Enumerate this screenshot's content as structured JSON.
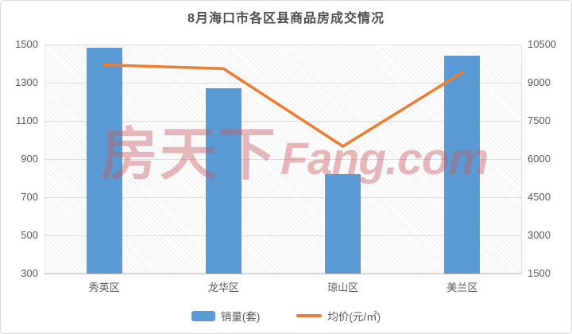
{
  "title": "8月海口市各区县商品房成交情况",
  "watermark": {
    "cn": "房天下",
    "en": "Fang.com"
  },
  "legend": {
    "items": [
      {
        "label": "销量(套)",
        "swatch": "bar-swatch-icon",
        "color": "#5B9BD5"
      },
      {
        "label": "均价(元/㎡)",
        "swatch": "line-swatch-icon",
        "color": "#ED7D31"
      }
    ]
  },
  "colors": {
    "bar": "#5B9BD5",
    "line": "#ED7D31",
    "title_text": "#4d4d4d",
    "axis_text": "#595959",
    "gridline": "#dcdcdc",
    "watermark_pink": "#c95960"
  },
  "chart_data": {
    "type": "bar",
    "subtype": "bar+line combo, dual y-axes",
    "title": "8月海口市各区县商品房成交情况",
    "categories": [
      "秀英区",
      "龙华区",
      "琼山区",
      "美兰区"
    ],
    "series": [
      {
        "name": "销量(套)",
        "type": "bar",
        "axis": "left",
        "color": "#5B9BD5",
        "values": [
          1485,
          1270,
          820,
          1440
        ]
      },
      {
        "name": "均价(元/㎡)",
        "type": "line",
        "axis": "right",
        "color": "#ED7D31",
        "values": [
          9700,
          9550,
          6500,
          9400
        ]
      }
    ],
    "left_axis": {
      "min": 300,
      "max": 1500,
      "step": 200,
      "ticks": [
        1500,
        1300,
        1100,
        900,
        700,
        500,
        300
      ]
    },
    "right_axis": {
      "min": 1500,
      "max": 10500,
      "step": 1500,
      "ticks": [
        10500,
        9000,
        7500,
        6000,
        4500,
        3000,
        1500
      ]
    },
    "grid": true,
    "legend_position": "bottom"
  }
}
